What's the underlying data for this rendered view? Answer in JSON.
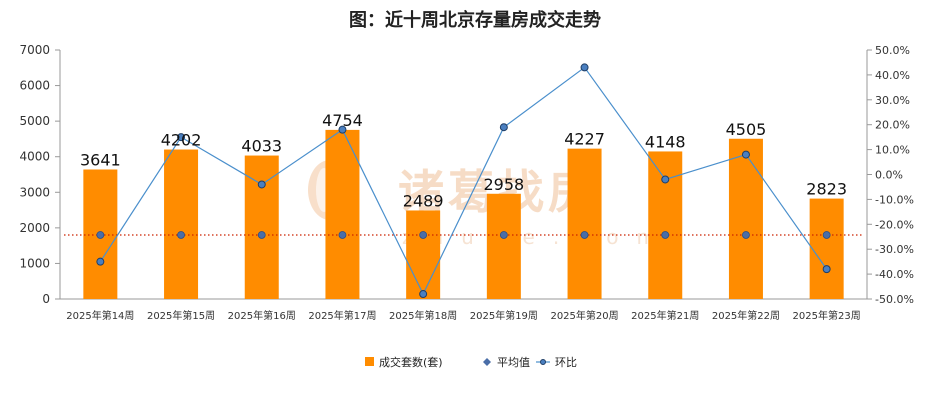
{
  "chart_data": {
    "type": "bar",
    "title": "图：近十周北京存量房成交走势",
    "categories": [
      "2025年第14周",
      "2025年第15周",
      "2025年第16周",
      "2025年第17周",
      "2025年第18周",
      "2025年第19周",
      "2025年第20周",
      "2025年第21周",
      "2025年第22周",
      "2025年第23周"
    ],
    "series": [
      {
        "name": "成交套数(套)",
        "type": "bar",
        "axis": "left",
        "color": "#ff8c00",
        "values": [
          3641,
          4202,
          4033,
          4754,
          2489,
          2958,
          4227,
          4148,
          4505,
          2823
        ]
      },
      {
        "name": "平均值",
        "type": "line",
        "axis": "left",
        "style": "dotted",
        "color": "#cc2200",
        "values": [
          1800,
          1800,
          1800,
          1800,
          1800,
          1800,
          1800,
          1800,
          1800,
          1800
        ]
      },
      {
        "name": "环比",
        "type": "line",
        "axis": "right",
        "color": "#4a8fcc",
        "values": [
          -35,
          15,
          -4,
          18,
          -48,
          19,
          43,
          -2,
          8,
          -38
        ]
      }
    ],
    "ylim_left": [
      0,
      7000
    ],
    "yticks_left": [
      "0",
      "1000",
      "2000",
      "3000",
      "4000",
      "5000",
      "6000",
      "7000"
    ],
    "ylim_right": [
      -50,
      50
    ],
    "yticks_right": [
      "-50.0%",
      "-40.0%",
      "-30.0%",
      "-20.0%",
      "-10.0%",
      "0.0%",
      "10.0%",
      "20.0%",
      "30.0%",
      "40.0%",
      "50.0%"
    ],
    "legend": {
      "position": "bottom",
      "items": [
        "成交套数(套)",
        "平均值",
        "环比"
      ]
    },
    "grid": false
  },
  "watermark": {
    "text": "诸葛找房",
    "sub": "zhuge.com"
  }
}
